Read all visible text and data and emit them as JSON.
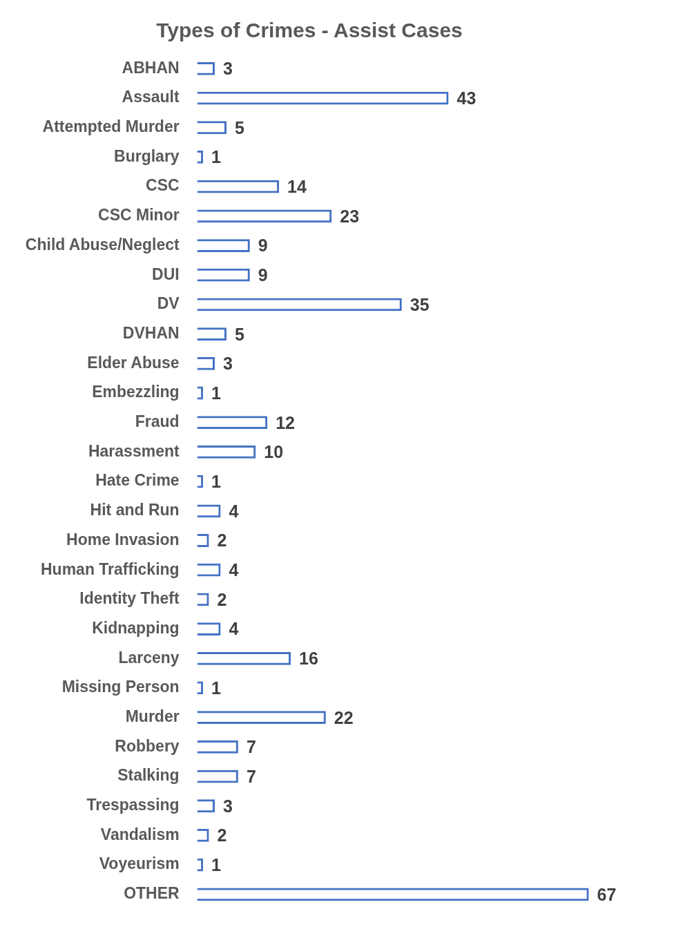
{
  "chart_data": {
    "type": "bar",
    "orientation": "horizontal",
    "title": "Types of Crimes - Assist Cases",
    "categories": [
      "ABHAN",
      "Assault",
      "Attempted Murder",
      "Burglary",
      "CSC",
      "CSC Minor",
      "Child Abuse/Neglect",
      "DUI",
      "DV",
      "DVHAN",
      "Elder Abuse",
      "Embezzling",
      "Fraud",
      "Harassment",
      "Hate Crime",
      "Hit and Run",
      "Home Invasion",
      "Human Trafficking",
      "Identity Theft",
      "Kidnapping",
      "Larceny",
      "Missing Person",
      "Murder",
      "Robbery",
      "Stalking",
      "Trespassing",
      "Vandalism",
      "Voyeurism",
      "OTHER"
    ],
    "values": [
      3,
      43,
      5,
      1,
      14,
      23,
      9,
      9,
      35,
      5,
      3,
      1,
      12,
      10,
      1,
      4,
      2,
      4,
      2,
      4,
      16,
      1,
      22,
      7,
      7,
      3,
      2,
      1,
      67
    ],
    "color": "#4472c4",
    "data_labels": true
  }
}
